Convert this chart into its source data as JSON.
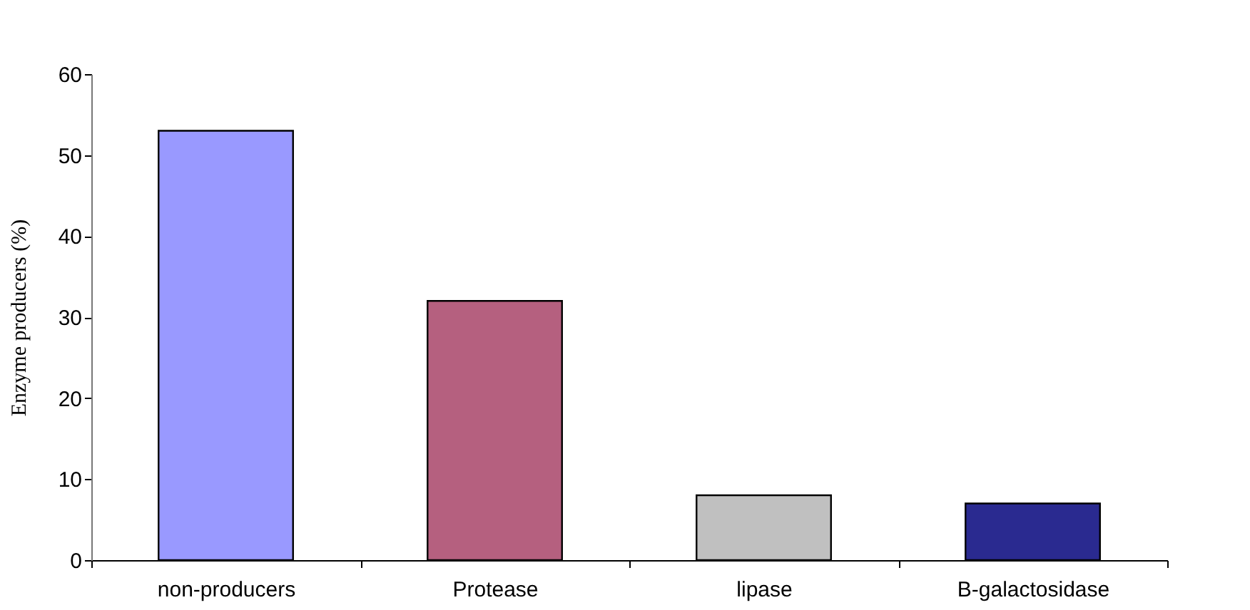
{
  "chart_data": {
    "type": "bar",
    "ylabel": "Enzyme producers (%)",
    "categories": [
      "non-producers",
      "Protease",
      "lipase",
      "B-galactosidase"
    ],
    "values": [
      53,
      32,
      8,
      7
    ],
    "colors": [
      "#9999ff",
      "#b5607f",
      "#c0c0c0",
      "#2a2a90"
    ],
    "ylim": [
      0,
      60
    ],
    "yticks": [
      0,
      10,
      20,
      30,
      40,
      50,
      60
    ],
    "grid": false
  }
}
